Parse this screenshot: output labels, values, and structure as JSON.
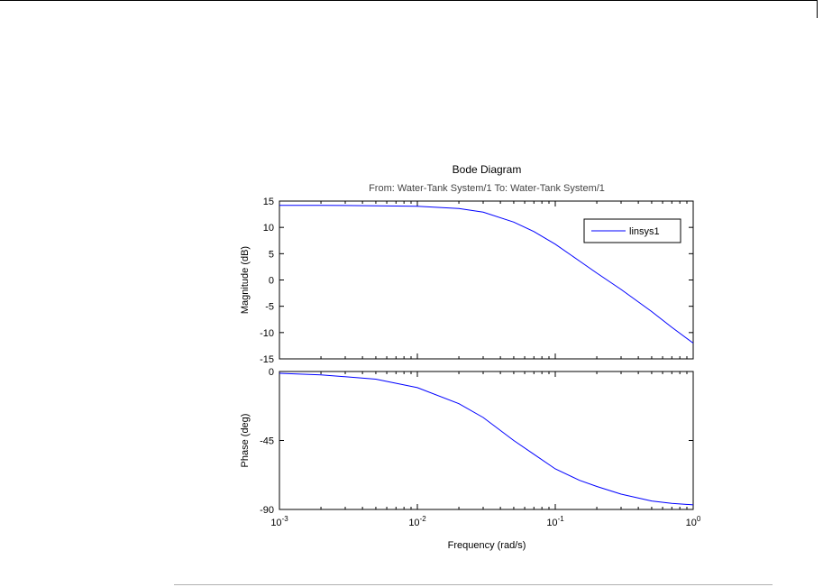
{
  "chart_data": {
    "type": "line",
    "title": "Bode Diagram",
    "subtitle": "From: Water-Tank System/1  To: Water-Tank System/1",
    "xlabel": "Frequency  (rad/s)",
    "x_scale": "log",
    "xlim": [
      0.001,
      1
    ],
    "x_ticks": [
      {
        "value": 0.001,
        "base": "10",
        "exp": "-3"
      },
      {
        "value": 0.01,
        "base": "10",
        "exp": "-2"
      },
      {
        "value": 0.1,
        "base": "10",
        "exp": "-1"
      },
      {
        "value": 1,
        "base": "10",
        "exp": "0"
      }
    ],
    "legend": {
      "placement": "top-right",
      "entries": [
        "linsys1"
      ]
    },
    "line_color": "#0000ff",
    "panels": [
      {
        "ylabel": "Magnitude (dB)",
        "ylim": [
          -15,
          15
        ],
        "y_ticks": [
          15,
          10,
          5,
          0,
          -5,
          -10,
          -15
        ],
        "series": [
          {
            "name": "linsys1",
            "x": [
              0.001,
              0.002,
              0.005,
              0.01,
              0.02,
              0.03,
              0.05,
              0.07,
              0.1,
              0.15,
              0.2,
              0.3,
              0.5,
              0.7,
              1.0
            ],
            "y": [
              14.2,
              14.2,
              14.1,
              14.0,
              13.6,
              12.9,
              11.0,
              9.2,
              6.8,
              3.6,
              1.3,
              -1.8,
              -6.0,
              -9.0,
              -12.0
            ]
          }
        ]
      },
      {
        "ylabel": "Phase (deg)",
        "ylim": [
          -90,
          0
        ],
        "y_ticks": [
          0,
          -45,
          -90
        ],
        "series": [
          {
            "name": "linsys1",
            "x": [
              0.001,
              0.002,
              0.005,
              0.01,
              0.02,
              0.03,
              0.05,
              0.07,
              0.1,
              0.15,
              0.2,
              0.3,
              0.5,
              0.7,
              1.0
            ],
            "y": [
              -1.2,
              -2.2,
              -5.0,
              -10.5,
              -21.0,
              -30.0,
              -45.0,
              -54.0,
              -63.5,
              -71.0,
              -75.0,
              -80.0,
              -84.5,
              -86.0,
              -87.0
            ]
          }
        ]
      }
    ]
  }
}
